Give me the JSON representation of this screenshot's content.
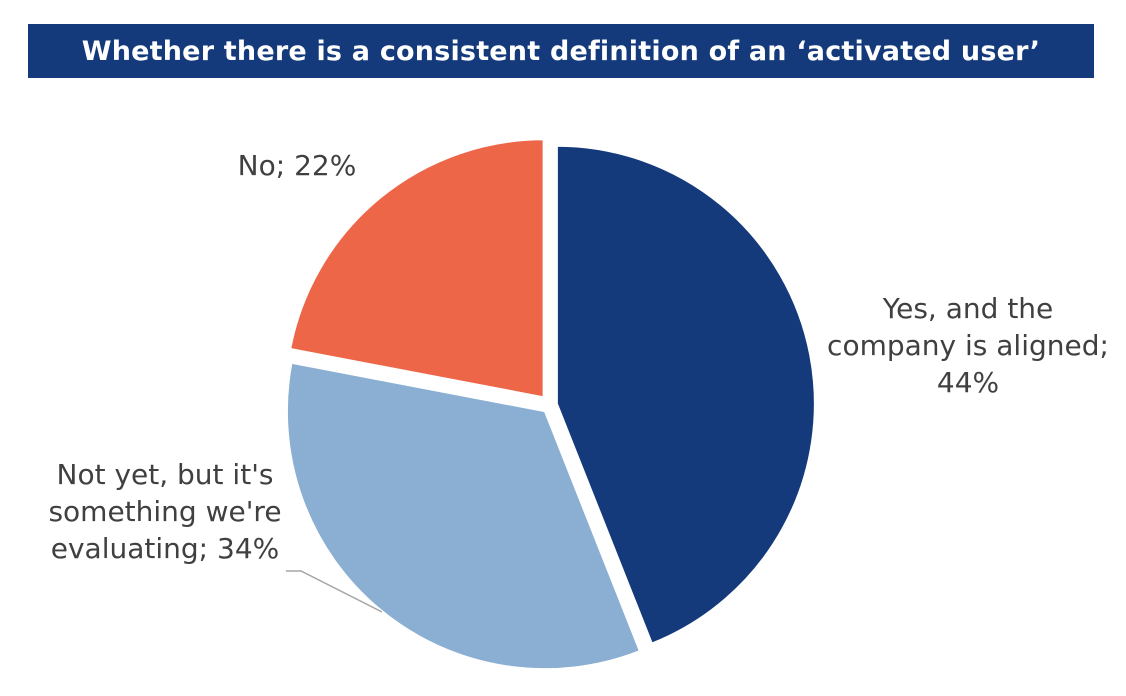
{
  "chart_data": {
    "type": "pie",
    "title": "Whether there is a consistent definition of an ‘activated user’",
    "slices": [
      {
        "label": "Yes, and the company is aligned",
        "value": 44,
        "color": "#143A7B",
        "label_lines": [
          "Yes, and the",
          "company is aligned;",
          "44%"
        ]
      },
      {
        "label": "Not yet, but it's something we're evaluating",
        "value": 34,
        "color": "#8AAFD2",
        "label_lines": [
          "Not yet, but it's",
          "something we're",
          "evaluating; 34%"
        ]
      },
      {
        "label": "No",
        "value": 22,
        "color": "#EE6648",
        "label_lines": [
          "No; 22%"
        ]
      }
    ],
    "legend": "none",
    "data_labels": "outside, category; percentage"
  },
  "colors": {
    "title_background": "#143A7B",
    "title_text": "#FFFFFF",
    "label_text": "#404040",
    "leader_line": "#A6A6A6"
  }
}
